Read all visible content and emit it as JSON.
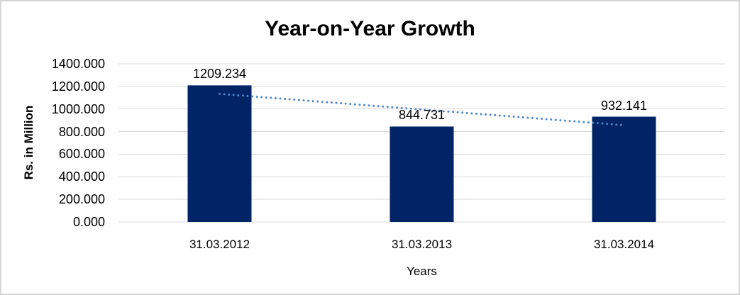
{
  "page": {
    "background": "#FFFFFF",
    "frame_border_color": "#D5D5D5"
  },
  "chart_data": {
    "type": "bar",
    "title": "Year-on-Year Growth",
    "categories": [
      "31.03.2012",
      "31.03.2013",
      "31.03.2014"
    ],
    "values": [
      1209.234,
      844.731,
      932.141
    ],
    "data_labels": [
      "1209.234",
      "844.731",
      "932.141"
    ],
    "xlabel": "Years",
    "ylabel": "Rs. in Million",
    "ylim": [
      0,
      1400
    ],
    "yticks": {
      "values": [
        0,
        200,
        400,
        600,
        800,
        1000,
        1200,
        1400
      ],
      "labels": [
        "0.000",
        "200.000",
        "400.000",
        "600.000",
        "800.000",
        "1000.000",
        "1200.000",
        "1400.000"
      ]
    },
    "grid": true,
    "legend_position": "none",
    "bar_color": "#002466",
    "grid_color": "#D9D9D9",
    "text_color": "#000000",
    "trendline": {
      "kind": "linear",
      "style": "dotted",
      "color": "#4E86C8",
      "start_value": 1133.92,
      "end_value": 856.82
    }
  }
}
